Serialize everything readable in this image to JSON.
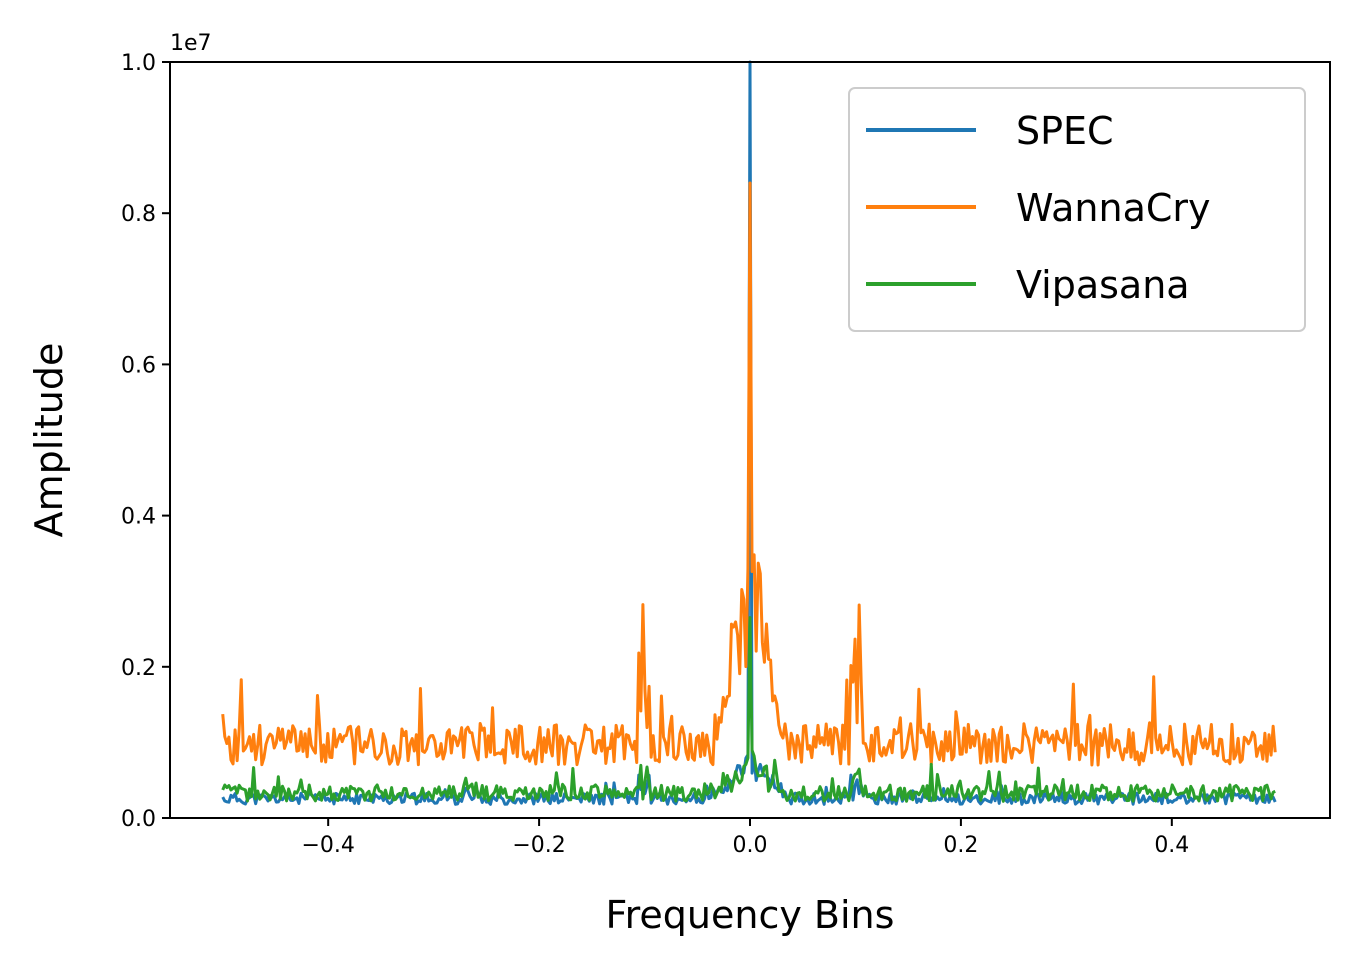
{
  "chart_data": {
    "type": "line",
    "title": "",
    "xlabel": "Frequency Bins",
    "ylabel": "Amplitude",
    "xlim": [
      -0.55,
      0.55
    ],
    "ylim": [
      0,
      10000000
    ],
    "y_offset_label": "1e7",
    "x_ticks": [
      -0.4,
      -0.2,
      0.0,
      0.2,
      0.4
    ],
    "x_tick_labels": [
      "−0.4",
      "−0.2",
      "0.0",
      "0.2",
      "0.4"
    ],
    "y_ticks": [
      0,
      2000000,
      4000000,
      6000000,
      8000000,
      10000000
    ],
    "y_tick_labels": [
      "0.0",
      "0.2",
      "0.4",
      "0.6",
      "0.8",
      "1.0"
    ],
    "legend_position": "top-right",
    "series": [
      {
        "name": "SPEC",
        "color": "#1f77b4",
        "peak": 10000000,
        "side_peak": 700000,
        "base": 180000,
        "jitter": 150000,
        "seed": 11
      },
      {
        "name": "WannaCry",
        "color": "#ff7f0e",
        "peak": 8400000,
        "side_peak": 3400000,
        "base": 700000,
        "jitter": 550000,
        "seed": 23
      },
      {
        "name": "Vipasana",
        "color": "#2ca02c",
        "peak": 2650000,
        "side_peak": 550000,
        "base": 220000,
        "jitter": 220000,
        "seed": 37
      }
    ],
    "n_points": 512
  }
}
